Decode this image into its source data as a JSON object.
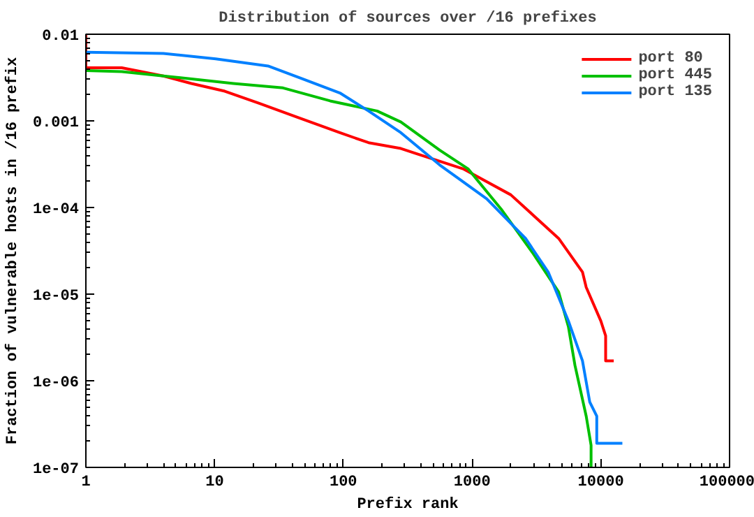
{
  "chart_data": {
    "type": "line",
    "title": "Distribution of sources over /16 prefixes",
    "xlabel": "Prefix rank",
    "ylabel": "Fraction of vulnerable hosts in /16 prefix",
    "log": "xy",
    "grid": false,
    "legend": "top right",
    "line_style": "solid",
    "marker": "none",
    "xlim": [
      1,
      100000
    ],
    "xticks": [
      1,
      10,
      100,
      1000,
      10000,
      100000
    ],
    "ylim": [
      1e-07,
      0.01
    ],
    "yticks": [
      0.01,
      0.001,
      {
        "value": 0.0001,
        "label": "1e-04"
      },
      {
        "value": 1e-05,
        "label": "1e-05"
      },
      {
        "value": 1e-06,
        "label": "1e-06"
      },
      {
        "value": 1e-07,
        "label": "1e-07"
      }
    ],
    "series": [
      {
        "name": "port 80",
        "color": "#ff0000",
        "x": [
          1,
          1,
          1.9,
          4,
          6.6,
          12,
          22,
          44,
          94,
          157,
          280,
          365,
          850,
          2000,
          4700,
          7200,
          7700,
          10000,
          10900,
          10900,
          12600
        ],
        "values": [
          0.01,
          0.0041,
          0.0041,
          0.0033,
          0.0027,
          0.0022,
          0.0016,
          0.0011,
          0.00073,
          0.00056,
          0.00048,
          0.00042,
          0.00028,
          0.00014,
          4.4e-05,
          1.8e-05,
          1.2e-05,
          4.9e-06,
          3.3e-06,
          1.7e-06,
          1.7e-06
        ]
      },
      {
        "name": "port 445",
        "color": "#00c000",
        "x": [
          1,
          1.9,
          4,
          14,
          34,
          79,
          183,
          280,
          560,
          930,
          1680,
          3000,
          4700,
          5600,
          6300,
          7700,
          8400,
          8400
        ],
        "values": [
          0.0038,
          0.0037,
          0.0033,
          0.0027,
          0.0024,
          0.0017,
          0.0013,
          0.00097,
          0.00046,
          0.00028,
          9.6e-05,
          2.9e-05,
          1.06e-05,
          4.2e-06,
          1.5e-06,
          3.9e-07,
          1.8e-07,
          1e-07
        ]
      },
      {
        "name": "port 135",
        "color": "#0080ff",
        "x": [
          1,
          4,
          10.2,
          26,
          47,
          94,
          157,
          280,
          560,
          1300,
          2600,
          3900,
          5600,
          7200,
          8200,
          9300,
          9300,
          14700
        ],
        "values": [
          0.0062,
          0.006,
          0.0052,
          0.0043,
          0.0031,
          0.0021,
          0.0013,
          0.00073,
          0.00031,
          0.000126,
          4.4e-05,
          1.8e-05,
          4.9e-06,
          1.7e-06,
          5.7e-07,
          3.9e-07,
          1.9e-07,
          1.9e-07
        ]
      }
    ]
  }
}
